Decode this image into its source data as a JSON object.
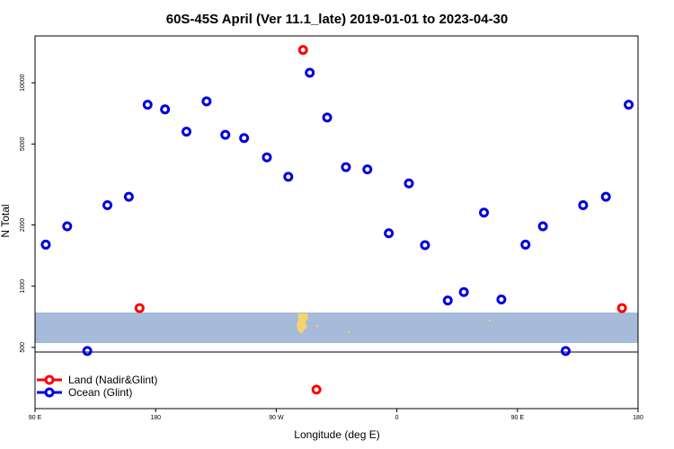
{
  "chart_data": {
    "type": "scatter",
    "title": "60S-45S April (Ver 11.1_late)   2019-01-01 to 2023-04-30",
    "xlabel": "Longitude (deg E)",
    "ylabel": "N Total",
    "x_ticks": [
      {
        "value": 90,
        "label": "90 E"
      },
      {
        "value": 180,
        "label": "180"
      },
      {
        "value": 270,
        "label": "90 W"
      },
      {
        "value": 360,
        "label": "0"
      },
      {
        "value": 450,
        "label": "90 E"
      },
      {
        "value": 540,
        "label": "180"
      }
    ],
    "xlim": [
      90,
      540
    ],
    "y_scale": "log",
    "y_ticks": [
      500,
      1000,
      2000,
      5000,
      10000
    ],
    "ylim": [
      250,
      17000
    ],
    "grid": false,
    "legend_position": "bottom-left",
    "series": [
      {
        "name": "Land (Nadir&Glint)",
        "color": "#ff0000",
        "points": [
          {
            "x": 168,
            "y": 780
          },
          {
            "x": 290,
            "y": 14500
          },
          {
            "x": 300,
            "y": 310
          },
          {
            "x": 528,
            "y": 780
          }
        ]
      },
      {
        "name": "Ocean (Glint)",
        "color": "#0000e0",
        "points": [
          {
            "x": 98,
            "y": 1600
          },
          {
            "x": 114,
            "y": 1970
          },
          {
            "x": 129,
            "y": 480
          },
          {
            "x": 144,
            "y": 2500
          },
          {
            "x": 160,
            "y": 2750
          },
          {
            "x": 174,
            "y": 7800
          },
          {
            "x": 187,
            "y": 7400
          },
          {
            "x": 203,
            "y": 5750
          },
          {
            "x": 218,
            "y": 8100
          },
          {
            "x": 232,
            "y": 5550
          },
          {
            "x": 246,
            "y": 5350
          },
          {
            "x": 263,
            "y": 4300
          },
          {
            "x": 279,
            "y": 3450
          },
          {
            "x": 295,
            "y": 11200
          },
          {
            "x": 308,
            "y": 6750
          },
          {
            "x": 322,
            "y": 3850
          },
          {
            "x": 338,
            "y": 3750
          },
          {
            "x": 354,
            "y": 1820
          },
          {
            "x": 369,
            "y": 3200
          },
          {
            "x": 381,
            "y": 1590
          },
          {
            "x": 398,
            "y": 850
          },
          {
            "x": 410,
            "y": 935
          },
          {
            "x": 425,
            "y": 2300
          },
          {
            "x": 438,
            "y": 860
          },
          {
            "x": 456,
            "y": 1600
          },
          {
            "x": 469,
            "y": 1970
          },
          {
            "x": 486,
            "y": 480
          },
          {
            "x": 499,
            "y": 2500
          },
          {
            "x": 516,
            "y": 2750
          },
          {
            "x": 533,
            "y": 7800
          }
        ]
      }
    ]
  }
}
